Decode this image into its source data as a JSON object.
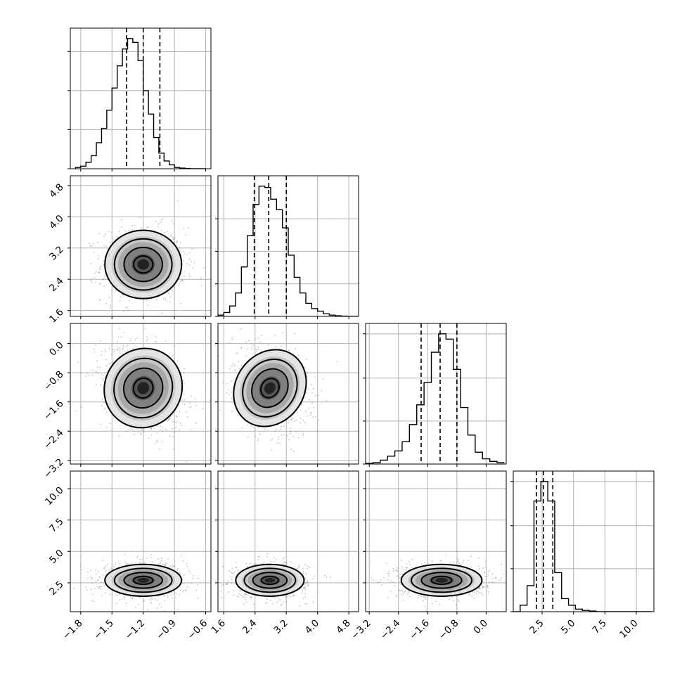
{
  "chart_data": {
    "type": "corner",
    "n_parameters": 4,
    "grid": true,
    "parameters": [
      {
        "range": [
          -1.9,
          -0.55
        ],
        "ticks": [
          -1.8,
          -1.5,
          -1.2,
          -0.9,
          -0.6
        ],
        "tick_labels": [
          "−1.8",
          "−1.5",
          "−1.2",
          "−0.9",
          "−0.6"
        ],
        "quantiles": [
          -1.36,
          -1.2,
          -1.04
        ],
        "center": -1.2,
        "sigma": 0.16,
        "hist_bins": [
          -1.85,
          -1.8,
          -1.75,
          -1.7,
          -1.65,
          -1.6,
          -1.55,
          -1.5,
          -1.45,
          -1.4,
          -1.35,
          -1.3,
          -1.25,
          -1.2,
          -1.15,
          -1.1,
          -1.05,
          -1.0,
          -0.95,
          -0.9,
          -0.85,
          -0.8,
          -0.75,
          -0.7,
          -0.65,
          -0.6
        ],
        "hist_counts": [
          0.01,
          0.02,
          0.05,
          0.1,
          0.2,
          0.31,
          0.45,
          0.62,
          0.79,
          0.92,
          1.0,
          0.97,
          0.83,
          0.6,
          0.42,
          0.24,
          0.12,
          0.06,
          0.03,
          0.01,
          0.005,
          0.002,
          0,
          0,
          0
        ],
        "hist_max_fraction": 0.22,
        "hist_yticks": [
          0,
          0.3,
          0.6,
          0.9
        ]
      },
      {
        "range": [
          1.45,
          5.05
        ],
        "ticks": [
          1.6,
          2.4,
          3.2,
          4.0,
          4.8
        ],
        "tick_labels": [
          "1.6",
          "2.4",
          "3.2",
          "4.0",
          "4.8"
        ],
        "quantiles": [
          2.38,
          2.75,
          3.2
        ],
        "center": 2.78,
        "sigma": 0.38,
        "hist_bins": [
          1.45,
          1.6,
          1.75,
          1.9,
          2.05,
          2.2,
          2.35,
          2.5,
          2.65,
          2.8,
          2.95,
          3.1,
          3.25,
          3.4,
          3.55,
          3.7,
          3.85,
          4.0,
          4.15,
          4.3,
          4.45,
          4.6,
          4.75,
          4.9,
          5.05
        ],
        "hist_counts": [
          0.01,
          0.03,
          0.08,
          0.18,
          0.38,
          0.62,
          0.86,
          1.0,
          0.99,
          0.9,
          0.82,
          0.68,
          0.47,
          0.3,
          0.18,
          0.1,
          0.06,
          0.04,
          0.02,
          0.01,
          0.005,
          0.002,
          0,
          0
        ],
        "hist_yticks": [
          0,
          0.25,
          0.5,
          0.75
        ]
      },
      {
        "range": [
          -3.3,
          0.55
        ],
        "ticks": [
          -3.2,
          -2.4,
          -1.6,
          -0.8,
          0.0
        ],
        "tick_labels": [
          "−3.2",
          "−2.4",
          "−1.6",
          "−0.8",
          "0.0"
        ],
        "quantiles": [
          -1.78,
          -1.26,
          -0.8
        ],
        "center": -1.22,
        "sigma": 0.48,
        "hist_bins": [
          -3.3,
          -3.1,
          -2.9,
          -2.7,
          -2.5,
          -2.3,
          -2.1,
          -1.9,
          -1.7,
          -1.5,
          -1.3,
          -1.1,
          -0.9,
          -0.7,
          -0.5,
          -0.3,
          -0.1,
          0.1,
          0.3,
          0.5
        ],
        "hist_counts": [
          0.005,
          0.01,
          0.03,
          0.06,
          0.1,
          0.17,
          0.3,
          0.45,
          0.62,
          0.85,
          0.99,
          0.95,
          0.72,
          0.43,
          0.22,
          0.09,
          0.04,
          0.02,
          0.01
        ],
        "hist_yticks": [
          0,
          0.33,
          0.66,
          1.0
        ]
      },
      {
        "range": [
          0.2,
          11.4
        ],
        "ticks": [
          2.5,
          5.0,
          7.5,
          10.0
        ],
        "tick_labels": [
          "2.5",
          "5.0",
          "7.5",
          "10.0"
        ],
        "quantiles": [
          2.05,
          2.6,
          3.35
        ],
        "center": 2.7,
        "sigma": 0.55,
        "hist_bins": [
          0.2,
          0.75,
          1.3,
          1.85,
          2.4,
          2.95,
          3.5,
          4.05,
          4.6,
          5.15,
          5.7,
          6.25,
          6.8,
          7.35,
          7.9,
          8.45,
          9.0,
          9.55,
          10.1,
          10.65,
          11.2
        ],
        "hist_counts": [
          0,
          0.05,
          0.2,
          0.85,
          1.0,
          0.85,
          0.3,
          0.1,
          0.05,
          0.02,
          0.01,
          0.005,
          0,
          0,
          0,
          0,
          0,
          0,
          0,
          0
        ],
        "hist_yticks": [
          0,
          0.33,
          0.66,
          1.0
        ]
      }
    ],
    "contour_levels": [
      0.5,
      1.0,
      1.5,
      2.0
    ]
  }
}
